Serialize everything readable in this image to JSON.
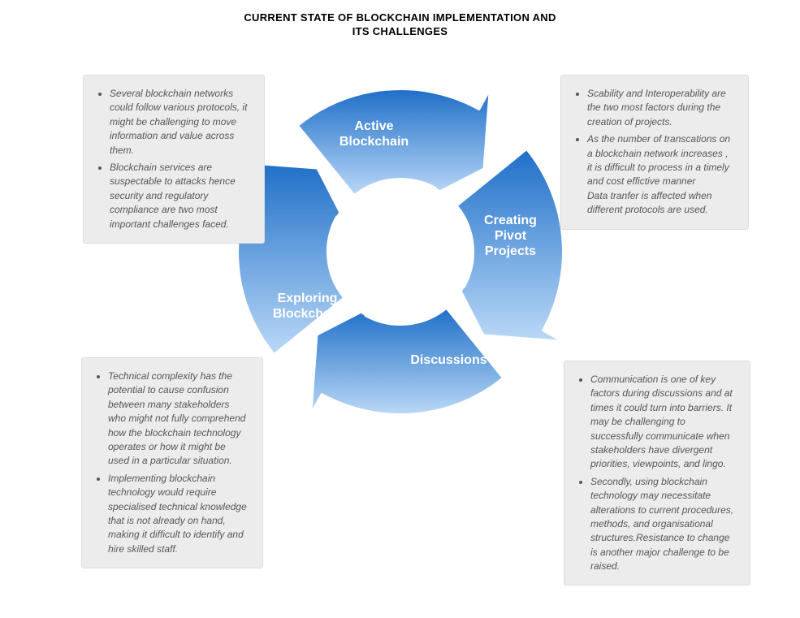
{
  "title_line1": "CURRENT STATE OF BLOCKCHAIN IMPLEMENTATION AND",
  "title_line2": "ITS CHALLENGES",
  "cycle": {
    "type": "circular-arrow-cycle",
    "segments": 4,
    "outer_radius": 200,
    "inner_radius": 90,
    "colors": {
      "grad_top": "#1f6fc8",
      "grad_bottom": "#bad8f7",
      "stroke": "#ffffff",
      "center_fill": "#ffffff",
      "label_color": "#ffffff"
    },
    "label_fontsize": 16,
    "label_fontweight": "bold",
    "labels": {
      "top": "Active\nBlockchain",
      "right": "Creating\nPivot\nProjects",
      "bottom": "Discussions",
      "left": "Exploring\nBlockchain"
    }
  },
  "boxes": {
    "background": "#ececec",
    "border_color": "#dddddd",
    "text_color": "#565656",
    "fontsize": 12,
    "font_style": "italic",
    "tl": {
      "bullets": [
        "Several blockchain networks could follow various protocols, it might be challenging to move information and value across them.",
        "Blockchain services are suspectable to attacks hence security and regulatory compliance are two most important challenges faced."
      ]
    },
    "tr": {
      "bullets": [
        "Scability and Interoperability are the two most factors during the creation of projects.",
        "As the number of transcations on a blockchain network increases , it is difficult to process in a timely and cost  effictive manner\nData tranfer is affected when different protocols are used."
      ]
    },
    "bl": {
      "bullets": [
        "Technical complexity has the potential to cause confusion between many stakeholders who might not fully comprehend how the blockchain technology operates or how it might be used in a particular situation.",
        "Implementing blockchain technology would require specialised technical knowledge that is not already on hand, making it difficult to identify and hire skilled staff."
      ]
    },
    "br": {
      "bullets": [
        "Communication is one of key factors during discussions and at times it could turn into barriers. It may be challenging to successfully communicate when stakeholders have divergent priorities, viewpoints, and lingo.",
        "Secondly, using blockchain technology may necessitate alterations to current procedures, methods, and organisational structures.Resistance to change is another major challenge to be raised."
      ]
    }
  }
}
